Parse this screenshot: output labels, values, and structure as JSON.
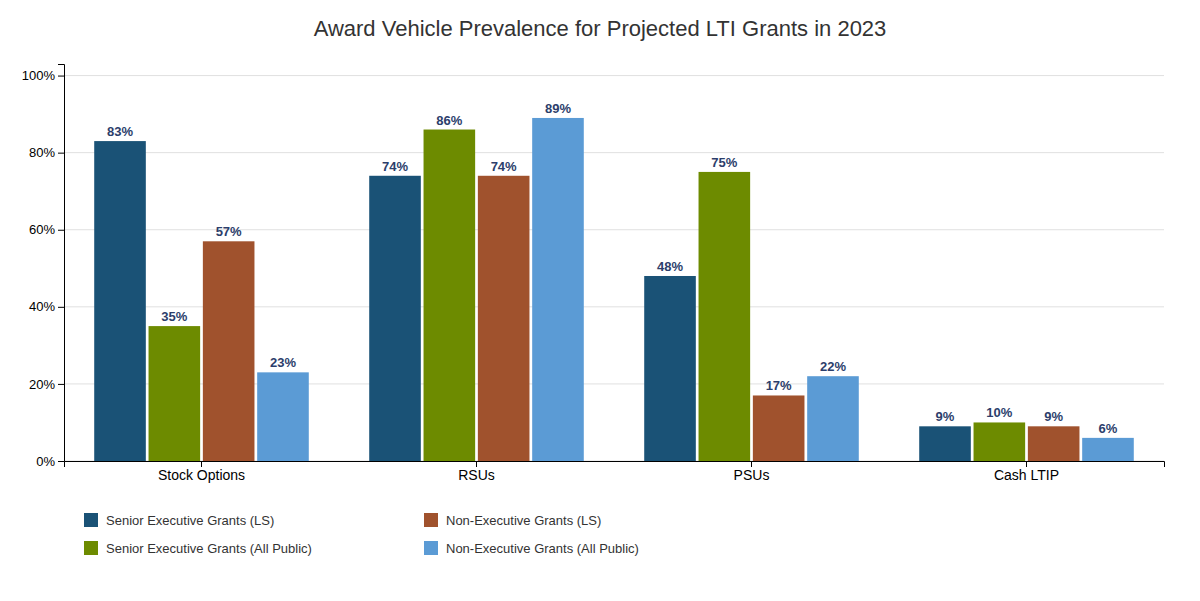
{
  "chart_data": {
    "type": "bar",
    "title": "Award Vehicle Prevalence for Projected LTI Grants in 2023",
    "categories": [
      "Stock Options",
      "RSUs",
      "PSUs",
      "Cash LTIP"
    ],
    "series": [
      {
        "name": "Senior Executive Grants (LS)",
        "color": "#1a5276",
        "values": [
          83,
          74,
          48,
          9
        ],
        "value_labels": [
          "83%",
          "74%",
          "48%",
          "9%"
        ]
      },
      {
        "name": "Senior Executive Grants (All Public)",
        "color": "#6d8b00",
        "values": [
          35,
          86,
          75,
          10
        ],
        "value_labels": [
          "35%",
          "86%",
          "75%",
          "10%"
        ]
      },
      {
        "name": "Non-Executive Grants (LS)",
        "color": "#a0522d",
        "values": [
          57,
          74,
          17,
          9
        ],
        "value_labels": [
          "57%",
          "74%",
          "17%",
          "9%"
        ]
      },
      {
        "name": "Non-Executive Grants (All Public)",
        "color": "#5b9bd5",
        "values": [
          23,
          89,
          22,
          6
        ],
        "value_labels": [
          "23%",
          "89%",
          "22%",
          "6%"
        ]
      }
    ],
    "ylim": [
      0,
      103
    ],
    "yticks": [
      {
        "value": 0,
        "label": "0%"
      },
      {
        "value": 20,
        "label": "20%"
      },
      {
        "value": 40,
        "label": "40%"
      },
      {
        "value": 60,
        "label": "60%"
      },
      {
        "value": 80,
        "label": "80%"
      },
      {
        "value": 100,
        "label": "100%"
      }
    ],
    "grid": true,
    "legend": "bottom",
    "data_labels": true
  }
}
